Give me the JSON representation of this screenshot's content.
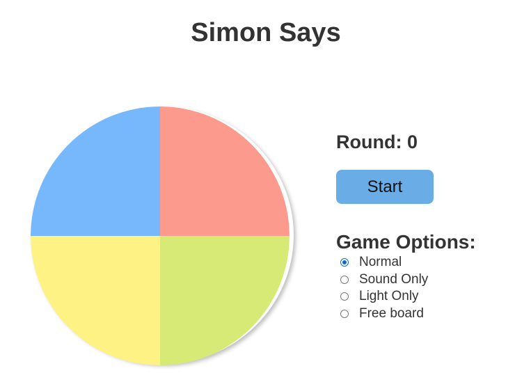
{
  "title": "Simon Says",
  "round": {
    "label": "Round: 0",
    "value": 0
  },
  "start_button": "Start",
  "options": {
    "heading": "Game Options:",
    "items": [
      {
        "label": "Normal",
        "selected": true
      },
      {
        "label": "Sound Only",
        "selected": false
      },
      {
        "label": "Light Only",
        "selected": false
      },
      {
        "label": "Free board",
        "selected": false
      }
    ]
  },
  "colors": {
    "blue": "#77b8fc",
    "red": "#fc9a8e",
    "yellow": "#fdf283",
    "green": "#d7ea75",
    "button": "#6aace6"
  }
}
